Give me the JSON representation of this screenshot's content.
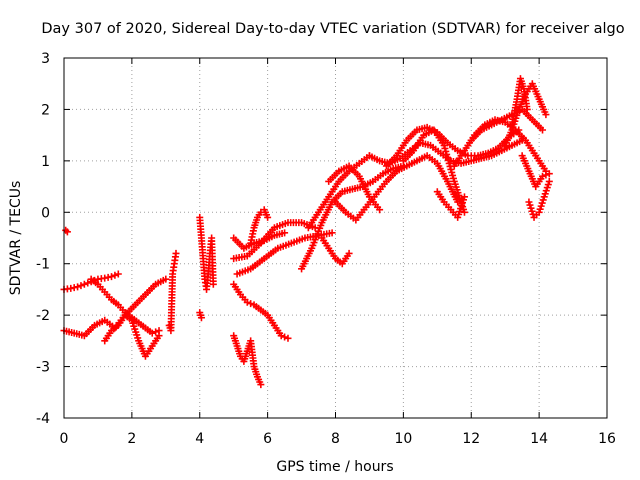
{
  "chart_data": {
    "type": "scatter",
    "title": "Day 307 of 2020, Sidereal Day-to-day VTEC variation (SDTVAR) for receiver algo",
    "xlabel": "GPS time / hours",
    "ylabel": "SDTVAR / TECUs",
    "xlim": [
      0,
      16
    ],
    "ylim": [
      -4,
      3
    ],
    "x_ticks": [
      0,
      2,
      4,
      6,
      8,
      10,
      12,
      14,
      16
    ],
    "y_ticks": [
      -4,
      -3,
      -2,
      -1,
      0,
      1,
      2,
      3
    ],
    "grid": true,
    "marker": "plus",
    "color": "#ff0000",
    "series": [
      {
        "x": [
          0.0,
          0.2,
          0.4,
          0.6,
          0.8,
          1.0,
          1.2,
          1.4,
          1.6
        ],
        "y": [
          -1.5,
          -1.48,
          -1.45,
          -1.4,
          -1.35,
          -1.3,
          -1.28,
          -1.25,
          -1.2
        ]
      },
      {
        "x": [
          0.0,
          0.3,
          0.6,
          0.9,
          1.2,
          1.5,
          1.8,
          2.1,
          2.4,
          2.7,
          3.0
        ],
        "y": [
          -2.3,
          -2.35,
          -2.4,
          -2.2,
          -2.1,
          -2.25,
          -2.0,
          -1.8,
          -1.6,
          -1.4,
          -1.3
        ]
      },
      {
        "x": [
          0.8,
          1.0,
          1.2,
          1.4,
          1.6,
          1.8,
          2.0,
          2.2,
          2.4,
          2.6,
          2.8
        ],
        "y": [
          -1.3,
          -1.4,
          -1.55,
          -1.7,
          -1.8,
          -1.95,
          -2.05,
          -2.15,
          -2.25,
          -2.35,
          -2.3
        ]
      },
      {
        "x": [
          1.2,
          1.4,
          1.6,
          1.8,
          2.0,
          2.2,
          2.4,
          2.6,
          2.8
        ],
        "y": [
          -2.5,
          -2.3,
          -2.2,
          -2.0,
          -2.1,
          -2.5,
          -2.8,
          -2.6,
          -2.4
        ]
      },
      {
        "x": [
          0.05,
          0.1
        ],
        "y": [
          -0.35,
          -0.38
        ]
      },
      {
        "x": [
          3.1,
          3.15,
          3.2,
          3.25,
          3.3
        ],
        "y": [
          -2.2,
          -2.3,
          -1.2,
          -1.0,
          -0.8
        ]
      },
      {
        "x": [
          4.0,
          4.05,
          4.1,
          4.15,
          4.2,
          4.25,
          4.3,
          4.35,
          4.4
        ],
        "y": [
          -0.1,
          -0.5,
          -0.9,
          -1.3,
          -1.5,
          -1.2,
          -0.8,
          -0.5,
          -1.4
        ]
      },
      {
        "x": [
          4.0,
          4.05
        ],
        "y": [
          -1.95,
          -2.05
        ]
      },
      {
        "x": [
          5.0,
          5.3,
          5.6,
          5.9,
          6.2,
          6.5
        ],
        "y": [
          -0.5,
          -0.7,
          -0.6,
          -0.55,
          -0.45,
          -0.4
        ]
      },
      {
        "x": [
          5.0,
          5.4,
          5.8,
          6.2,
          6.6,
          7.0,
          7.4
        ],
        "y": [
          -0.9,
          -0.85,
          -0.6,
          -0.3,
          -0.2,
          -0.2,
          -0.3
        ]
      },
      {
        "x": [
          5.1,
          5.5,
          5.9,
          6.3,
          6.7,
          7.1,
          7.5,
          7.9
        ],
        "y": [
          -1.2,
          -1.1,
          -0.9,
          -0.7,
          -0.6,
          -0.5,
          -0.45,
          -0.4
        ]
      },
      {
        "x": [
          5.0,
          5.2,
          5.4,
          5.6,
          5.8,
          6.0,
          6.2,
          6.4,
          6.6
        ],
        "y": [
          -1.4,
          -1.6,
          -1.75,
          -1.8,
          -1.9,
          -2.0,
          -2.2,
          -2.4,
          -2.45
        ]
      },
      {
        "x": [
          5.0,
          5.1,
          5.2,
          5.3,
          5.4,
          5.5,
          5.6,
          5.7,
          5.8
        ],
        "y": [
          -2.4,
          -2.6,
          -2.8,
          -2.9,
          -2.7,
          -2.5,
          -3.0,
          -3.2,
          -3.35
        ]
      },
      {
        "x": [
          5.5,
          5.6,
          5.7,
          5.8,
          5.9,
          6.0
        ],
        "y": [
          -0.6,
          -0.3,
          -0.1,
          0.0,
          0.05,
          -0.1
        ]
      },
      {
        "x": [
          7.0,
          7.3,
          7.6,
          7.9,
          8.2,
          8.5,
          8.8,
          9.1,
          9.4,
          9.7,
          10.0
        ],
        "y": [
          -1.1,
          -0.7,
          -0.2,
          0.2,
          0.4,
          0.45,
          0.5,
          0.6,
          0.75,
          0.85,
          0.9
        ]
      },
      {
        "x": [
          7.2,
          7.5,
          7.8,
          8.1,
          8.4,
          8.7,
          9.0
        ],
        "y": [
          -0.3,
          0.0,
          0.3,
          0.6,
          0.8,
          0.95,
          1.1
        ]
      },
      {
        "x": [
          7.6,
          7.8,
          8.0,
          8.2,
          8.4
        ],
        "y": [
          -0.5,
          -0.7,
          -0.9,
          -1.0,
          -0.8
        ]
      },
      {
        "x": [
          7.8,
          8.1,
          8.4,
          8.7,
          9.0,
          9.3
        ],
        "y": [
          0.6,
          0.8,
          0.9,
          0.7,
          0.3,
          0.05
        ]
      },
      {
        "x": [
          8.0,
          8.3,
          8.6,
          8.9,
          9.2,
          9.5,
          9.8
        ],
        "y": [
          0.2,
          0.0,
          -0.15,
          0.1,
          0.35,
          0.6,
          0.8
        ]
      },
      {
        "x": [
          9.0,
          9.3,
          9.6,
          9.9,
          10.2,
          10.5,
          10.8,
          11.1,
          11.4,
          11.7,
          12.0,
          12.3,
          12.6,
          12.9,
          13.2,
          13.5
        ],
        "y": [
          1.1,
          1.0,
          0.95,
          1.05,
          1.2,
          1.35,
          1.3,
          1.15,
          1.0,
          0.95,
          1.0,
          1.05,
          1.1,
          1.2,
          1.3,
          1.4
        ]
      },
      {
        "x": [
          9.5,
          9.8,
          10.1,
          10.4,
          10.7,
          11.0,
          11.3,
          11.6,
          11.9,
          12.2,
          12.5,
          12.8,
          13.1,
          13.4
        ],
        "y": [
          0.9,
          1.1,
          1.4,
          1.6,
          1.65,
          1.55,
          1.35,
          1.2,
          1.1,
          1.1,
          1.15,
          1.25,
          1.45,
          1.6
        ]
      },
      {
        "x": [
          9.8,
          10.1,
          10.4,
          10.7,
          11.0,
          11.3,
          11.6
        ],
        "y": [
          0.8,
          0.9,
          1.0,
          1.1,
          0.95,
          0.6,
          0.2
        ]
      },
      {
        "x": [
          10.0,
          10.3,
          10.6,
          10.9,
          11.2,
          11.5,
          11.8
        ],
        "y": [
          1.0,
          1.2,
          1.5,
          1.6,
          1.3,
          0.6,
          0.0
        ]
      },
      {
        "x": [
          11.0,
          11.2,
          11.4,
          11.6,
          11.8
        ],
        "y": [
          0.4,
          0.2,
          0.05,
          -0.1,
          0.3
        ]
      },
      {
        "x": [
          11.5,
          11.8,
          12.1,
          12.4,
          12.7,
          13.0,
          13.3,
          13.6,
          13.9,
          14.2
        ],
        "y": [
          0.9,
          1.2,
          1.5,
          1.7,
          1.8,
          1.75,
          1.6,
          1.4,
          1.1,
          0.8
        ]
      },
      {
        "x": [
          12.0,
          12.3,
          12.6,
          12.9,
          13.2,
          13.5,
          13.8,
          14.1
        ],
        "y": [
          1.4,
          1.6,
          1.7,
          1.8,
          1.9,
          2.0,
          1.8,
          1.6
        ]
      },
      {
        "x": [
          13.0,
          13.2,
          13.4,
          13.6,
          13.8,
          14.0,
          14.2
        ],
        "y": [
          1.3,
          1.6,
          2.0,
          2.3,
          2.5,
          2.2,
          1.9
        ]
      },
      {
        "x": [
          13.2,
          13.35,
          13.45,
          13.55,
          13.65
        ],
        "y": [
          1.7,
          2.2,
          2.6,
          2.4,
          2.0
        ]
      },
      {
        "x": [
          13.5,
          13.7,
          13.9,
          14.1,
          14.3
        ],
        "y": [
          1.1,
          0.8,
          0.5,
          0.7,
          0.75
        ]
      },
      {
        "x": [
          13.7,
          13.85,
          14.0,
          14.15,
          14.3
        ],
        "y": [
          0.2,
          -0.1,
          0.0,
          0.3,
          0.6
        ]
      }
    ]
  }
}
